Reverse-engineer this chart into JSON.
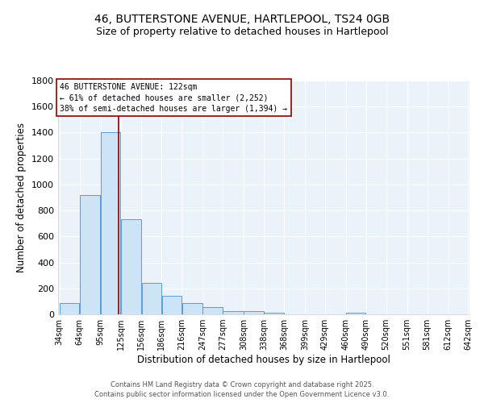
{
  "title_line1": "46, BUTTERSTONE AVENUE, HARTLEPOOL, TS24 0GB",
  "title_line2": "Size of property relative to detached houses in Hartlepool",
  "xlabel": "Distribution of detached houses by size in Hartlepool",
  "ylabel": "Number of detached properties",
  "bin_labels": [
    "34sqm",
    "64sqm",
    "95sqm",
    "125sqm",
    "156sqm",
    "186sqm",
    "216sqm",
    "247sqm",
    "277sqm",
    "308sqm",
    "338sqm",
    "368sqm",
    "399sqm",
    "429sqm",
    "460sqm",
    "490sqm",
    "520sqm",
    "551sqm",
    "581sqm",
    "612sqm",
    "642sqm"
  ],
  "bin_edges": [
    34,
    64,
    95,
    125,
    156,
    186,
    216,
    247,
    277,
    308,
    338,
    368,
    399,
    429,
    460,
    490,
    520,
    551,
    581,
    612,
    642
  ],
  "bar_heights": [
    90,
    920,
    1400,
    730,
    245,
    145,
    90,
    55,
    25,
    25,
    15,
    0,
    0,
    0,
    15,
    0,
    0,
    0,
    0,
    0
  ],
  "bar_facecolor": "#cce4f5",
  "bar_edgecolor": "#5b9bd5",
  "property_line_x": 122,
  "property_line_color": "#8b0000",
  "annotation_line1": "46 BUTTERSTONE AVENUE: 122sqm",
  "annotation_line2": "← 61% of detached houses are smaller (2,252)",
  "annotation_line3": "38% of semi-detached houses are larger (1,394) →",
  "annotation_box_edgecolor": "#8b0000",
  "annotation_box_facecolor": "white",
  "ylim": [
    0,
    1800
  ],
  "yticks": [
    0,
    200,
    400,
    600,
    800,
    1000,
    1200,
    1400,
    1600,
    1800
  ],
  "bg_color": "#eaf2fa",
  "grid_color": "#d8e8f4",
  "footer_line1": "Contains HM Land Registry data © Crown copyright and database right 2025.",
  "footer_line2": "Contains public sector information licensed under the Open Government Licence v3.0."
}
